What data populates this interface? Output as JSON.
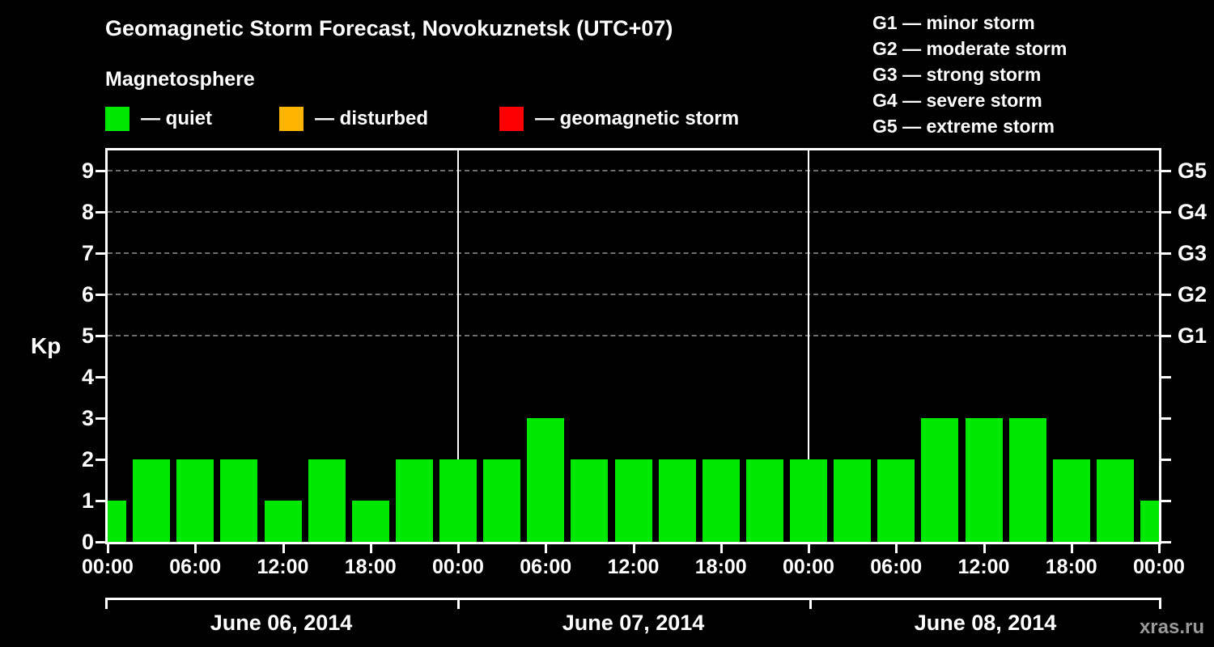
{
  "header": {
    "title": "Geomagnetic Storm Forecast, Novokuznetsk (UTC+07)",
    "subtitle": "Magnetosphere"
  },
  "legend": {
    "items": [
      {
        "name": "quiet",
        "label": "— quiet",
        "color": "#00e800"
      },
      {
        "name": "disturbed",
        "label": "— disturbed",
        "color": "#ffb400"
      },
      {
        "name": "geomagnetic-storm",
        "label": "— geomagnetic storm",
        "color": "#ff0000"
      }
    ]
  },
  "g_scale": {
    "items": [
      "G1 — minor storm",
      "G2 — moderate storm",
      "G3 — strong storm",
      "G4 — severe storm",
      "G5 — extreme storm"
    ]
  },
  "watermark": "xras.ru",
  "chart_data": {
    "type": "bar",
    "title": "Geomagnetic Storm Forecast, Novokuznetsk (UTC+07)",
    "ylabel": "Kp",
    "ylim": [
      0,
      9.5
    ],
    "y_ticks": [
      0,
      1,
      2,
      3,
      4,
      5,
      6,
      7,
      8,
      9
    ],
    "dashed_grid_levels": [
      5,
      6,
      7,
      8,
      9
    ],
    "right_axis_labels": [
      {
        "kp": 5,
        "label": "G1"
      },
      {
        "kp": 6,
        "label": "G2"
      },
      {
        "kp": 7,
        "label": "G3"
      },
      {
        "kp": 8,
        "label": "G4"
      },
      {
        "kp": 9,
        "label": "G5"
      }
    ],
    "x_tick_labels": [
      "00:00",
      "06:00",
      "12:00",
      "18:00",
      "00:00",
      "06:00",
      "12:00",
      "18:00",
      "00:00",
      "06:00",
      "12:00",
      "18:00",
      "00:00"
    ],
    "point_step_hours": 3,
    "days": [
      {
        "label": "June 06, 2014",
        "values": [
          1,
          2,
          2,
          2,
          1,
          2,
          1,
          2
        ]
      },
      {
        "label": "June 07, 2014",
        "values": [
          2,
          2,
          3,
          2,
          2,
          2,
          2,
          2
        ]
      },
      {
        "label": "June 08, 2014",
        "values": [
          2,
          2,
          2,
          3,
          3,
          3,
          2,
          2
        ]
      }
    ],
    "final_point_value": 1,
    "kp_values_flat": [
      1,
      2,
      2,
      2,
      1,
      2,
      1,
      2,
      2,
      2,
      3,
      2,
      2,
      2,
      2,
      2,
      2,
      2,
      2,
      3,
      3,
      3,
      2,
      2,
      1
    ],
    "bar_color": "#00e800",
    "grid_color": "#6e6e6e",
    "axis_color": "#ffffff",
    "legend_position": "top"
  }
}
